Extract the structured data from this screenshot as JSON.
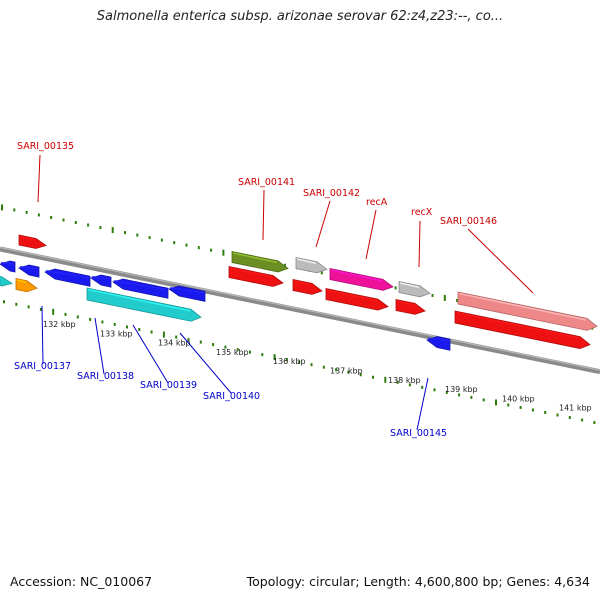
{
  "title": "Salmonella enterica subsp. arizonae serovar 62:z4,z23:--, co...",
  "footer": {
    "accession": "Accession: NC_010067",
    "summary": "Topology: circular; Length: 4,600,800 bp; Genes: 4,634"
  },
  "colors": {
    "backbone": "#8a8a8a",
    "forward_tick": "#2e7d0c",
    "reverse_tick": "#2e7d0c",
    "label_top": "#cc0000",
    "label_bottom": "#0000cc"
  },
  "scale_labels": [
    "132 kbp",
    "133 kbp",
    "134 kbp",
    "135 kbp",
    "136 kbp",
    "137 kbp",
    "138 kbp",
    "139 kbp",
    "140 kbp",
    "141 kbp"
  ],
  "gene_labels_top": [
    "SARI_00135",
    "SARI_00141",
    "SARI_00142",
    "recA",
    "recX",
    "SARI_00146"
  ],
  "gene_labels_bottom": [
    "SARI_00137",
    "SARI_00138",
    "SARI_00139",
    "SARI_00140",
    "SARI_00145"
  ],
  "genes": [
    {
      "color": "#ee1111",
      "strand": "+"
    },
    {
      "color": "#1a1aee",
      "strand": "-"
    },
    {
      "color": "#1a1aee",
      "strand": "-"
    },
    {
      "color": "#1a1aee",
      "strand": "-"
    },
    {
      "color": "#1a1aee",
      "strand": "-"
    },
    {
      "color": "#1a1aee",
      "strand": "-"
    },
    {
      "color": "#1a1aee",
      "strand": "-"
    },
    {
      "color": "#22cccc",
      "strand": "+"
    },
    {
      "color": "#ff9900",
      "strand": "+"
    },
    {
      "color": "#22cccc",
      "strand": "+"
    },
    {
      "color": "#6b8e23",
      "strand": "+"
    },
    {
      "color": "#ee1111",
      "strand": "+"
    },
    {
      "color": "#bbbbbb",
      "strand": "+"
    },
    {
      "color": "#ee1111",
      "strand": "+"
    },
    {
      "color": "#ee1199",
      "strand": "+"
    },
    {
      "color": "#ee1111",
      "strand": "+"
    },
    {
      "color": "#bbbbbb",
      "strand": "+"
    },
    {
      "color": "#ee1111",
      "strand": "+"
    },
    {
      "color": "#1a1aee",
      "strand": "-"
    },
    {
      "color": "#ee8888",
      "strand": "+"
    },
    {
      "color": "#ee1111",
      "strand": "+"
    }
  ]
}
